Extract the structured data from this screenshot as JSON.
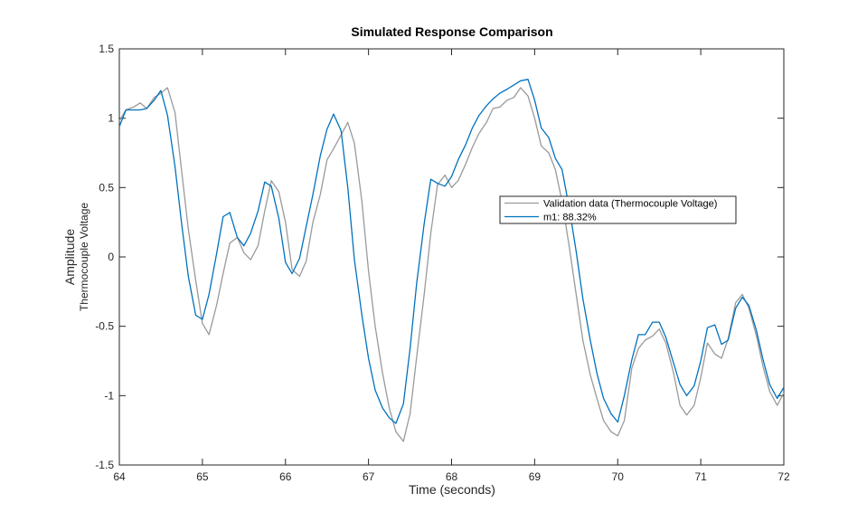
{
  "chart_data": {
    "type": "line",
    "title": "Simulated Response Comparison",
    "xlabel": "Time (seconds)",
    "ylabel": "Amplitude",
    "ysublabel": "Thermocouple Voltage",
    "xlim": [
      64,
      72
    ],
    "ylim": [
      -1.5,
      1.5
    ],
    "xticks": [
      64,
      65,
      66,
      67,
      68,
      69,
      70,
      71,
      72
    ],
    "xtick_labels": [
      "64",
      "65",
      "66",
      "67",
      "68",
      "69",
      "70",
      "71",
      "72"
    ],
    "yticks": [
      1.5,
      1,
      0.5,
      0,
      -0.5,
      -1,
      -1.5
    ],
    "ytick_labels": [
      "1.5",
      "1",
      "0.5",
      "0",
      "-0.5",
      "-1",
      "-1.5"
    ],
    "grid": false,
    "legend_position": "right",
    "series": [
      {
        "name": "Validation data (Thermocouple Voltage)",
        "color": "#9a9a9a",
        "x": [
          64.0,
          64.08,
          64.17,
          64.25,
          64.33,
          64.42,
          64.5,
          64.58,
          64.67,
          64.75,
          64.83,
          64.92,
          65.0,
          65.08,
          65.17,
          65.25,
          65.33,
          65.42,
          65.5,
          65.58,
          65.67,
          65.75,
          65.83,
          65.92,
          66.0,
          66.08,
          66.17,
          66.25,
          66.33,
          66.42,
          66.5,
          66.58,
          66.67,
          66.75,
          66.83,
          66.92,
          67.0,
          67.08,
          67.17,
          67.25,
          67.33,
          67.42,
          67.5,
          67.58,
          67.67,
          67.75,
          67.83,
          67.92,
          68.0,
          68.08,
          68.17,
          68.25,
          68.33,
          68.42,
          68.5,
          68.58,
          68.67,
          68.75,
          68.83,
          68.92,
          69.0,
          69.08,
          69.17,
          69.25,
          69.33,
          69.42,
          69.5,
          69.58,
          69.67,
          69.75,
          69.83,
          69.92,
          70.0,
          70.08,
          70.17,
          70.25,
          70.33,
          70.42,
          70.5,
          70.58,
          70.67,
          70.75,
          70.83,
          70.92,
          71.0,
          71.08,
          71.17,
          71.25,
          71.33,
          71.42,
          71.5,
          71.58,
          71.67,
          71.75,
          71.83,
          71.92,
          72.0
        ],
        "y": [
          0.98,
          1.06,
          1.08,
          1.11,
          1.07,
          1.15,
          1.18,
          1.22,
          1.04,
          0.62,
          0.2,
          -0.17,
          -0.48,
          -0.56,
          -0.35,
          -0.12,
          0.1,
          0.14,
          0.03,
          -0.02,
          0.08,
          0.33,
          0.55,
          0.47,
          0.25,
          -0.09,
          -0.14,
          -0.03,
          0.25,
          0.45,
          0.7,
          0.78,
          0.88,
          0.97,
          0.82,
          0.4,
          -0.1,
          -0.5,
          -0.84,
          -1.09,
          -1.26,
          -1.33,
          -1.13,
          -0.72,
          -0.27,
          0.17,
          0.52,
          0.59,
          0.5,
          0.55,
          0.67,
          0.79,
          0.89,
          0.97,
          1.07,
          1.08,
          1.13,
          1.15,
          1.22,
          1.16,
          1.0,
          0.8,
          0.75,
          0.63,
          0.4,
          0.06,
          -0.27,
          -0.6,
          -0.85,
          -1.02,
          -1.18,
          -1.26,
          -1.29,
          -1.18,
          -0.8,
          -0.66,
          -0.6,
          -0.57,
          -0.52,
          -0.62,
          -0.83,
          -1.07,
          -1.14,
          -1.07,
          -0.87,
          -0.62,
          -0.7,
          -0.73,
          -0.59,
          -0.33,
          -0.27,
          -0.37,
          -0.57,
          -0.79,
          -0.97,
          -1.07,
          -0.98
        ]
      },
      {
        "name": "m1: 88.32%",
        "color": "#0072bd",
        "x": [
          64.0,
          64.08,
          64.17,
          64.25,
          64.33,
          64.42,
          64.5,
          64.58,
          64.67,
          64.75,
          64.83,
          64.92,
          65.0,
          65.08,
          65.17,
          65.25,
          65.33,
          65.42,
          65.5,
          65.58,
          65.67,
          65.75,
          65.83,
          65.92,
          66.0,
          66.08,
          66.17,
          66.25,
          66.33,
          66.42,
          66.5,
          66.58,
          66.67,
          66.75,
          66.83,
          66.92,
          67.0,
          67.08,
          67.17,
          67.25,
          67.33,
          67.42,
          67.5,
          67.58,
          67.67,
          67.75,
          67.83,
          67.92,
          68.0,
          68.08,
          68.17,
          68.25,
          68.33,
          68.42,
          68.5,
          68.58,
          68.67,
          68.75,
          68.83,
          68.92,
          69.0,
          69.08,
          69.17,
          69.25,
          69.33,
          69.42,
          69.5,
          69.58,
          69.67,
          69.75,
          69.83,
          69.92,
          70.0,
          70.08,
          70.17,
          70.25,
          70.33,
          70.42,
          70.5,
          70.58,
          70.67,
          70.75,
          70.83,
          70.92,
          71.0,
          71.08,
          71.17,
          71.25,
          71.33,
          71.42,
          71.5,
          71.58,
          71.67,
          71.75,
          71.83,
          71.92,
          72.0
        ],
        "y": [
          0.94,
          1.06,
          1.06,
          1.06,
          1.07,
          1.13,
          1.2,
          1.02,
          0.65,
          0.24,
          -0.14,
          -0.42,
          -0.45,
          -0.27,
          0.02,
          0.29,
          0.32,
          0.14,
          0.08,
          0.17,
          0.33,
          0.54,
          0.51,
          0.28,
          -0.04,
          -0.12,
          -0.01,
          0.22,
          0.45,
          0.73,
          0.92,
          1.03,
          0.91,
          0.5,
          -0.02,
          -0.42,
          -0.73,
          -0.96,
          -1.09,
          -1.16,
          -1.2,
          -1.06,
          -0.66,
          -0.19,
          0.24,
          0.56,
          0.53,
          0.51,
          0.58,
          0.7,
          0.81,
          0.93,
          1.02,
          1.09,
          1.14,
          1.18,
          1.21,
          1.24,
          1.27,
          1.28,
          1.13,
          0.93,
          0.86,
          0.71,
          0.63,
          0.34,
          0.04,
          -0.3,
          -0.6,
          -0.84,
          -1.02,
          -1.13,
          -1.19,
          -1.0,
          -0.74,
          -0.56,
          -0.56,
          -0.47,
          -0.47,
          -0.58,
          -0.76,
          -0.92,
          -1.0,
          -0.93,
          -0.75,
          -0.51,
          -0.49,
          -0.63,
          -0.6,
          -0.37,
          -0.29,
          -0.35,
          -0.53,
          -0.74,
          -0.92,
          -1.02,
          -0.94
        ]
      }
    ]
  }
}
